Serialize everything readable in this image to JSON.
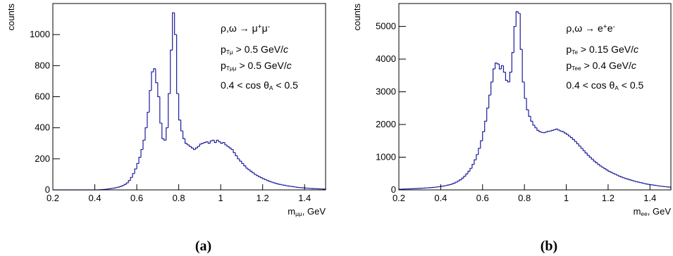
{
  "chart_data": [
    {
      "type": "histogram",
      "caption": "(a)",
      "y_label": "counts",
      "x_label": [
        {
          "text": "m"
        },
        {
          "text": "μμ",
          "sub": true
        },
        {
          "text": ", GeV"
        }
      ],
      "annotations": [
        [
          {
            "text": "ρ,ω → μ"
          },
          {
            "text": "+",
            "sup": true
          },
          {
            "text": "μ"
          },
          {
            "text": "-",
            "sup": true
          }
        ],
        [
          {
            "text": "p"
          },
          {
            "text": "Tμ",
            "sub": true
          },
          {
            "text": " > 0.5 GeV/"
          },
          {
            "text": "c",
            "italic": true
          }
        ],
        [
          {
            "text": "p"
          },
          {
            "text": "Tμμ",
            "sub": true
          },
          {
            "text": " > 0.5 GeV/"
          },
          {
            "text": "c",
            "italic": true
          }
        ],
        [
          {
            "text": "0.4 < cos θ"
          },
          {
            "text": "A",
            "sub": true
          },
          {
            "text": " < 0.5"
          }
        ]
      ],
      "color": "#1c1c9c",
      "xlim": [
        0.2,
        1.5
      ],
      "xticks": [
        0.2,
        0.4,
        0.6,
        0.8,
        1,
        1.2,
        1.4
      ],
      "ylim": [
        0,
        1200
      ],
      "yticks": [
        0,
        200,
        400,
        600,
        800,
        1000
      ],
      "bins": [
        0.2,
        0.21,
        0.22,
        0.23,
        0.24,
        0.25,
        0.26,
        0.27,
        0.28,
        0.29,
        0.3,
        0.31,
        0.32,
        0.33,
        0.34,
        0.35,
        0.36,
        0.37,
        0.38,
        0.39,
        0.4,
        0.41,
        0.42,
        0.43,
        0.44,
        0.45,
        0.46,
        0.47,
        0.48,
        0.49,
        0.5,
        0.51,
        0.52,
        0.53,
        0.54,
        0.55,
        0.56,
        0.57,
        0.58,
        0.59,
        0.6,
        0.61,
        0.62,
        0.63,
        0.64,
        0.65,
        0.66,
        0.67,
        0.68,
        0.69,
        0.7,
        0.71,
        0.72,
        0.73,
        0.74,
        0.75,
        0.76,
        0.77,
        0.78,
        0.79,
        0.8,
        0.81,
        0.82,
        0.83,
        0.84,
        0.85,
        0.86,
        0.87,
        0.88,
        0.89,
        0.9,
        0.91,
        0.92,
        0.93,
        0.94,
        0.95,
        0.96,
        0.97,
        0.98,
        0.99,
        1,
        1.01,
        1.02,
        1.03,
        1.04,
        1.05,
        1.06,
        1.07,
        1.08,
        1.09,
        1.1,
        1.11,
        1.12,
        1.13,
        1.14,
        1.15,
        1.16,
        1.17,
        1.18,
        1.19,
        1.2,
        1.21,
        1.22,
        1.23,
        1.24,
        1.25,
        1.26,
        1.27,
        1.28,
        1.29,
        1.3,
        1.31,
        1.32,
        1.33,
        1.34,
        1.35,
        1.36,
        1.37,
        1.38,
        1.39,
        1.4,
        1.41,
        1.42,
        1.43,
        1.44,
        1.45,
        1.46,
        1.47,
        1.48,
        1.49,
        1.5
      ],
      "values": [
        0,
        0,
        0,
        0,
        0,
        0,
        0,
        0,
        0,
        0,
        0,
        0,
        0,
        0,
        0,
        0,
        0,
        0,
        0,
        0,
        0,
        0,
        1,
        2,
        3,
        4,
        6,
        8,
        10,
        12,
        15,
        18,
        22,
        28,
        35,
        45,
        60,
        80,
        105,
        135,
        170,
        210,
        260,
        320,
        400,
        500,
        640,
        760,
        780,
        690,
        600,
        430,
        330,
        320,
        400,
        620,
        900,
        1140,
        1000,
        620,
        450,
        380,
        330,
        300,
        290,
        280,
        270,
        260,
        270,
        280,
        295,
        300,
        305,
        310,
        300,
        315,
        320,
        305,
        320,
        310,
        300,
        305,
        290,
        280,
        270,
        260,
        240,
        220,
        200,
        185,
        170,
        155,
        140,
        130,
        120,
        110,
        100,
        92,
        85,
        78,
        72,
        66,
        60,
        55,
        50,
        46,
        42,
        38,
        35,
        32,
        30,
        27,
        25,
        23,
        21,
        19,
        17,
        15,
        14,
        13,
        12,
        11,
        10,
        9,
        8,
        8,
        7,
        6,
        6,
        5
      ]
    },
    {
      "type": "histogram",
      "caption": "(b)",
      "y_label": "counts",
      "x_label": [
        {
          "text": "m"
        },
        {
          "text": "ee",
          "sub": true
        },
        {
          "text": ", GeV"
        }
      ],
      "annotations": [
        [
          {
            "text": "ρ,ω → e"
          },
          {
            "text": "+",
            "sup": true
          },
          {
            "text": "e"
          },
          {
            "text": "-",
            "sup": true
          }
        ],
        [
          {
            "text": "p"
          },
          {
            "text": "Te",
            "sub": true
          },
          {
            "text": " > 0.15 GeV/"
          },
          {
            "text": "c",
            "italic": true
          }
        ],
        [
          {
            "text": "p"
          },
          {
            "text": "Tee",
            "sub": true
          },
          {
            "text": " > 0.4 GeV/"
          },
          {
            "text": "c",
            "italic": true
          }
        ],
        [
          {
            "text": "0.4 < cos θ"
          },
          {
            "text": "A",
            "sub": true
          },
          {
            "text": " < 0.5"
          }
        ]
      ],
      "color": "#1c1c9c",
      "xlim": [
        0.2,
        1.5
      ],
      "xticks": [
        0.2,
        0.4,
        0.6,
        0.8,
        1,
        1.2,
        1.4
      ],
      "ylim": [
        0,
        5700
      ],
      "yticks": [
        0,
        1000,
        2000,
        3000,
        4000,
        5000
      ],
      "bins": [
        0.2,
        0.21,
        0.22,
        0.23,
        0.24,
        0.25,
        0.26,
        0.27,
        0.28,
        0.29,
        0.3,
        0.31,
        0.32,
        0.33,
        0.34,
        0.35,
        0.36,
        0.37,
        0.38,
        0.39,
        0.4,
        0.41,
        0.42,
        0.43,
        0.44,
        0.45,
        0.46,
        0.47,
        0.48,
        0.49,
        0.5,
        0.51,
        0.52,
        0.53,
        0.54,
        0.55,
        0.56,
        0.57,
        0.58,
        0.59,
        0.6,
        0.61,
        0.62,
        0.63,
        0.64,
        0.65,
        0.66,
        0.67,
        0.68,
        0.69,
        0.7,
        0.71,
        0.72,
        0.73,
        0.74,
        0.75,
        0.76,
        0.77,
        0.78,
        0.79,
        0.8,
        0.81,
        0.82,
        0.83,
        0.84,
        0.85,
        0.86,
        0.87,
        0.88,
        0.89,
        0.9,
        0.91,
        0.92,
        0.93,
        0.94,
        0.95,
        0.96,
        0.97,
        0.98,
        0.99,
        1,
        1.01,
        1.02,
        1.03,
        1.04,
        1.05,
        1.06,
        1.07,
        1.08,
        1.09,
        1.1,
        1.11,
        1.12,
        1.13,
        1.14,
        1.15,
        1.16,
        1.17,
        1.18,
        1.19,
        1.2,
        1.21,
        1.22,
        1.23,
        1.24,
        1.25,
        1.26,
        1.27,
        1.28,
        1.29,
        1.3,
        1.31,
        1.32,
        1.33,
        1.34,
        1.35,
        1.36,
        1.37,
        1.38,
        1.39,
        1.4,
        1.41,
        1.42,
        1.43,
        1.44,
        1.45,
        1.46,
        1.47,
        1.48,
        1.49,
        1.5
      ],
      "values": [
        20,
        22,
        25,
        28,
        30,
        32,
        35,
        38,
        40,
        45,
        48,
        52,
        56,
        60,
        65,
        70,
        76,
        82,
        90,
        98,
        108,
        118,
        130,
        145,
        160,
        180,
        205,
        235,
        270,
        310,
        360,
        420,
        490,
        570,
        660,
        780,
        920,
        1080,
        1270,
        1500,
        1780,
        2100,
        2500,
        2900,
        3300,
        3700,
        3880,
        3850,
        3700,
        3800,
        3600,
        3350,
        3300,
        3600,
        4200,
        5000,
        5450,
        5400,
        4300,
        3300,
        2800,
        2450,
        2250,
        2100,
        1980,
        1900,
        1820,
        1780,
        1760,
        1750,
        1770,
        1790,
        1800,
        1820,
        1840,
        1860,
        1830,
        1800,
        1780,
        1740,
        1700,
        1650,
        1600,
        1540,
        1480,
        1410,
        1340,
        1270,
        1200,
        1130,
        1060,
        1000,
        940,
        880,
        830,
        780,
        730,
        690,
        650,
        610,
        570,
        540,
        510,
        480,
        450,
        420,
        395,
        370,
        350,
        330,
        310,
        290,
        270,
        255,
        240,
        225,
        210,
        195,
        180,
        170,
        160,
        150,
        140,
        130,
        120,
        112,
        105,
        98,
        92,
        86
      ]
    }
  ]
}
